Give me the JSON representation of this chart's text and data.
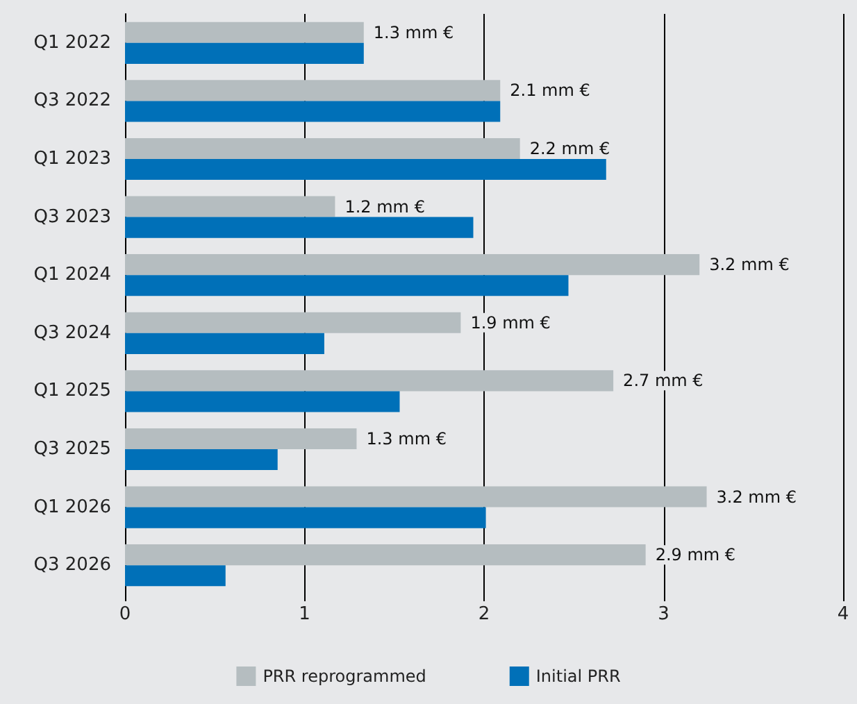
{
  "chart_data": {
    "type": "bar",
    "orientation": "horizontal",
    "categories": [
      "Q1 2022",
      "Q3 2022",
      "Q1 2023",
      "Q3 2023",
      "Q1 2024",
      "Q3 2024",
      "Q1 2025",
      "Q3 2025",
      "Q1 2026",
      "Q3 2026"
    ],
    "series": [
      {
        "name": "PRR reprogrammed",
        "color": "#b5bdc0",
        "values": [
          1.33,
          2.09,
          2.2,
          1.17,
          3.2,
          1.87,
          2.72,
          1.29,
          3.24,
          2.9
        ],
        "value_labels": [
          "1.3 mm €",
          "2.1 mm €",
          "2.2 mm €",
          "1.2 mm €",
          "3.2 mm €",
          "1.9 mm €",
          "2.7 mm €",
          "1.3 mm €",
          "3.2 mm €",
          "2.9 mm €"
        ]
      },
      {
        "name": "Initial PRR",
        "color": "#0070b8",
        "values": [
          1.33,
          2.09,
          2.68,
          1.94,
          2.47,
          1.11,
          1.53,
          0.85,
          2.01,
          0.56
        ]
      }
    ],
    "xlim": [
      0,
      4
    ],
    "xticks": [
      0,
      1,
      2,
      3,
      4
    ],
    "grid": "x",
    "legend": "bottom"
  }
}
